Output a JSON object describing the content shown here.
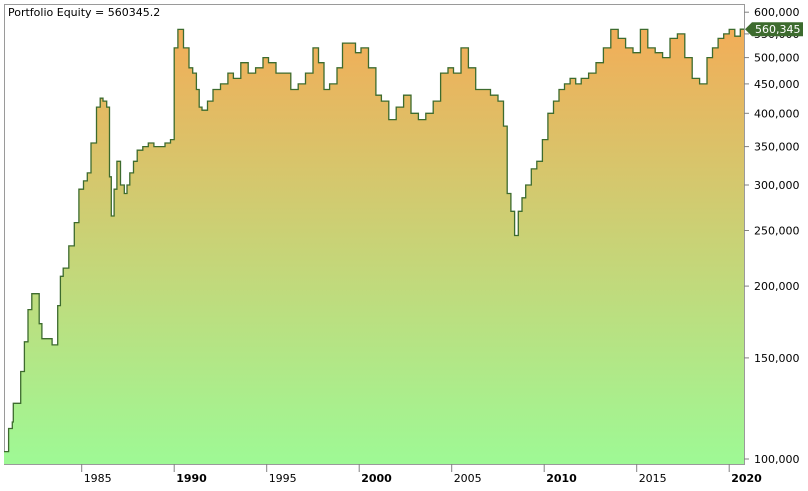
{
  "chart_data": {
    "type": "area",
    "title": "Portfolio Equity = 560345.2",
    "scale": "log",
    "ylim": [
      98000,
      620000
    ],
    "xlim": [
      1980.8,
      2020.8
    ],
    "y_ticks": [
      {
        "value": 600000,
        "label": "600,000"
      },
      {
        "value": 550000,
        "label": "550,000"
      },
      {
        "value": 500000,
        "label": "500,000"
      },
      {
        "value": 450000,
        "label": "450,000"
      },
      {
        "value": 400000,
        "label": "400,000"
      },
      {
        "value": 350000,
        "label": "350,000"
      },
      {
        "value": 300000,
        "label": "300,000"
      },
      {
        "value": 250000,
        "label": "250,000"
      },
      {
        "value": 200000,
        "label": "200,000"
      },
      {
        "value": 150000,
        "label": "150,000"
      },
      {
        "value": 100000,
        "label": "100,000"
      }
    ],
    "x_ticks": [
      {
        "value": 1985,
        "label": "1985",
        "bold": false
      },
      {
        "value": 1990,
        "label": "1990",
        "bold": true
      },
      {
        "value": 1995,
        "label": "1995",
        "bold": false
      },
      {
        "value": 2000,
        "label": "2000",
        "bold": true
      },
      {
        "value": 2005,
        "label": "2005",
        "bold": false
      },
      {
        "value": 2010,
        "label": "2010",
        "bold": true
      },
      {
        "value": 2015,
        "label": "2015",
        "bold": false
      },
      {
        "value": 2020,
        "label": "2020",
        "bold": true
      }
    ],
    "last_value_label": "560,345",
    "colors": {
      "line": "#3d6b2e",
      "fill_top": "#f2ad58",
      "fill_bottom": "#9ef995",
      "marker": "#3d6b2e"
    },
    "series": [
      {
        "x": [
          1980.8,
          1981.0,
          1981.05,
          1981.25,
          1981.3,
          1981.6,
          1981.7,
          1981.9,
          1982.1,
          1982.3,
          1982.5,
          1982.7,
          1982.85,
          1983.1,
          1983.25,
          1983.4,
          1983.7,
          1983.85,
          1984.0,
          1984.3,
          1984.6,
          1984.85,
          1985.1,
          1985.3,
          1985.5,
          1985.8,
          1986.0,
          1986.15,
          1986.35,
          1986.5,
          1986.6,
          1986.75,
          1986.9,
          1987.1,
          1987.3,
          1987.45,
          1987.6,
          1987.8,
          1988.0,
          1988.3,
          1988.6,
          1988.9,
          1989.2,
          1989.5,
          1989.8,
          1990.0,
          1990.2,
          1990.5,
          1990.8,
          1991.0,
          1991.2,
          1991.35,
          1991.5,
          1991.8,
          1992.1,
          1992.5,
          1992.9,
          1993.2,
          1993.6,
          1994.0,
          1994.4,
          1994.8,
          1995.1,
          1995.5,
          1995.9,
          1996.3,
          1996.7,
          1997.1,
          1997.5,
          1997.8,
          1998.1,
          1998.4,
          1998.8,
          1999.1,
          1999.5,
          1999.8,
          2000.1,
          2000.5,
          2000.9,
          2001.2,
          2001.6,
          2002.0,
          2002.4,
          2002.8,
          2003.2,
          2003.6,
          2004.0,
          2004.4,
          2004.8,
          2005.1,
          2005.5,
          2005.9,
          2006.3,
          2006.7,
          2007.1,
          2007.5,
          2007.8,
          2008.0,
          2008.2,
          2008.4,
          2008.6,
          2008.8,
          2009.0,
          2009.3,
          2009.6,
          2009.9,
          2010.2,
          2010.5,
          2010.8,
          2011.1,
          2011.4,
          2011.7,
          2012.0,
          2012.4,
          2012.8,
          2013.2,
          2013.6,
          2014.0,
          2014.4,
          2014.8,
          2015.2,
          2015.6,
          2016.0,
          2016.4,
          2016.8,
          2017.2,
          2017.6,
          2018.0,
          2018.4,
          2018.8,
          2019.1,
          2019.4,
          2019.7,
          2020.0,
          2020.3,
          2020.6
        ],
        "y": [
          103000,
          103000,
          113000,
          116000,
          125000,
          125000,
          142000,
          160000,
          182000,
          194000,
          194000,
          172000,
          162000,
          162000,
          162000,
          158000,
          185000,
          208000,
          215000,
          235000,
          258000,
          295000,
          305000,
          315000,
          355000,
          410000,
          425000,
          420000,
          410000,
          310000,
          265000,
          295000,
          330000,
          300000,
          290000,
          300000,
          315000,
          330000,
          345000,
          350000,
          355000,
          350000,
          350000,
          355000,
          360000,
          520000,
          560000,
          520000,
          480000,
          470000,
          440000,
          410000,
          405000,
          420000,
          440000,
          450000,
          470000,
          460000,
          490000,
          470000,
          480000,
          500000,
          490000,
          470000,
          470000,
          440000,
          450000,
          470000,
          520000,
          490000,
          440000,
          450000,
          480000,
          530000,
          530000,
          510000,
          520000,
          480000,
          430000,
          420000,
          390000,
          410000,
          430000,
          400000,
          390000,
          400000,
          420000,
          470000,
          480000,
          470000,
          520000,
          480000,
          440000,
          440000,
          430000,
          420000,
          380000,
          290000,
          270000,
          245000,
          270000,
          285000,
          300000,
          320000,
          330000,
          360000,
          400000,
          420000,
          440000,
          450000,
          460000,
          450000,
          460000,
          470000,
          490000,
          520000,
          560000,
          540000,
          520000,
          510000,
          560000,
          520000,
          510000,
          500000,
          540000,
          550000,
          500000,
          460000,
          450000,
          500000,
          520000,
          540000,
          550000,
          560000,
          545000,
          560345
        ]
      }
    ]
  }
}
